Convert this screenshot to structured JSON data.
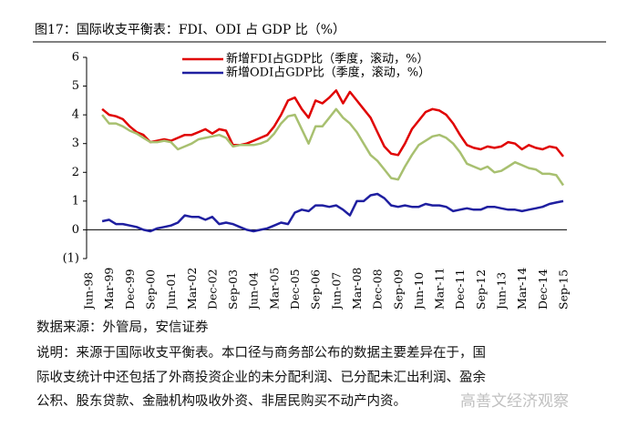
{
  "chart_data": {
    "type": "line",
    "title": "图17：国际收支平衡表：FDI、ODI 占 GDP 比（%）",
    "categories": [
      "Jun-98",
      null,
      null,
      "Mar-99",
      null,
      null,
      "Dec-99",
      null,
      null,
      "Sep-00",
      null,
      null,
      "Jun-01",
      null,
      null,
      "Mar-02",
      null,
      null,
      "Dec-02",
      null,
      null,
      "Sep-03",
      null,
      null,
      "Jun-04",
      null,
      null,
      "Mar-05",
      null,
      null,
      "Dec-05",
      null,
      null,
      "Sep-06",
      null,
      null,
      "Jun-07",
      null,
      null,
      "Mar-08",
      null,
      null,
      "Dec-08",
      null,
      null,
      "Sep-09",
      null,
      null,
      "Jun-10",
      null,
      null,
      "Mar-11",
      null,
      null,
      "Dec-11",
      null,
      null,
      "Sep-12",
      null,
      null,
      "Jun-13",
      null,
      null,
      "Mar-14",
      null,
      null,
      "Dec-14",
      null,
      null,
      "Sep-15"
    ],
    "series": [
      {
        "name": "新增FDI占GDP比（季度，滚动，%）",
        "color": "#e00000",
        "values": [
          null,
          null,
          4.2,
          4.0,
          3.95,
          3.85,
          3.6,
          3.4,
          3.3,
          3.05,
          3.1,
          3.15,
          3.1,
          3.2,
          3.3,
          3.3,
          3.4,
          3.5,
          3.35,
          3.5,
          3.45,
          2.95,
          2.95,
          3.0,
          3.1,
          3.2,
          3.3,
          3.6,
          4.0,
          4.5,
          4.6,
          4.2,
          3.9,
          4.5,
          4.4,
          4.6,
          4.85,
          4.4,
          4.8,
          4.5,
          4.2,
          3.9,
          3.4,
          2.9,
          2.65,
          2.6,
          3.0,
          3.5,
          3.8,
          4.1,
          4.2,
          4.15,
          4.0,
          3.7,
          3.3,
          2.95,
          2.85,
          2.8,
          2.9,
          2.85,
          2.9,
          3.05,
          3.0,
          2.8,
          2.95,
          2.85,
          2.8,
          2.9,
          2.85,
          2.55
        ]
      },
      {
        "name": "新增ODI占GDP比（季度，滚动，%）",
        "color": "#1f1fa0",
        "values": [
          null,
          null,
          0.3,
          0.35,
          0.2,
          0.2,
          0.15,
          0.1,
          0.0,
          -0.05,
          0.05,
          0.1,
          0.15,
          0.25,
          0.5,
          0.45,
          0.45,
          0.35,
          0.45,
          0.2,
          0.25,
          0.2,
          0.1,
          0.0,
          -0.05,
          0.0,
          0.05,
          0.15,
          0.25,
          0.2,
          0.6,
          0.7,
          0.65,
          0.85,
          0.85,
          0.8,
          0.85,
          0.7,
          0.5,
          1.0,
          1.0,
          1.2,
          1.25,
          1.1,
          0.85,
          0.8,
          0.85,
          0.8,
          0.8,
          0.9,
          0.85,
          0.85,
          0.8,
          0.65,
          0.7,
          0.75,
          0.7,
          0.7,
          0.8,
          0.8,
          0.75,
          0.7,
          0.7,
          0.65,
          0.7,
          0.75,
          0.8,
          0.9,
          0.95,
          1.0
        ]
      },
      {
        "color": "#a8c070",
        "values": [
          null,
          null,
          4.0,
          3.7,
          3.7,
          3.6,
          3.45,
          3.35,
          3.2,
          3.05,
          3.05,
          3.1,
          3.05,
          2.8,
          2.9,
          3.0,
          3.15,
          3.2,
          3.25,
          3.3,
          3.2,
          2.9,
          2.95,
          2.95,
          2.95,
          3.0,
          3.1,
          3.35,
          3.7,
          3.95,
          4.0,
          3.5,
          3.0,
          3.6,
          3.6,
          3.9,
          4.2,
          3.9,
          3.7,
          3.4,
          3.0,
          2.6,
          2.4,
          2.1,
          1.8,
          1.75,
          2.2,
          2.6,
          2.95,
          3.1,
          3.25,
          3.3,
          3.2,
          3.0,
          2.7,
          2.3,
          2.2,
          2.1,
          2.2,
          2.0,
          2.05,
          2.2,
          2.35,
          2.25,
          2.15,
          2.1,
          1.95,
          1.95,
          1.9,
          1.55
        ]
      }
    ],
    "ylim": [
      -1,
      6
    ],
    "yticks": [
      {
        "value": -1,
        "label": "(1)"
      },
      0,
      1,
      2,
      3,
      4,
      5,
      6
    ],
    "negative_tick_color": "#c00000",
    "grid": false
  },
  "source": "数据来源：外管局，安信证券",
  "note": [
    "说明：来源于国际收支平衡表。本口径与商务部公布的数据主要差异在于，国",
    "际收支统计中还包括了外商投资企业的未分配利润、已分配未汇出利润、盈余",
    "公积、股东贷款、金融机构吸收外资、非居民购买不动产内资。"
  ],
  "watermark": "高善文经济观察"
}
